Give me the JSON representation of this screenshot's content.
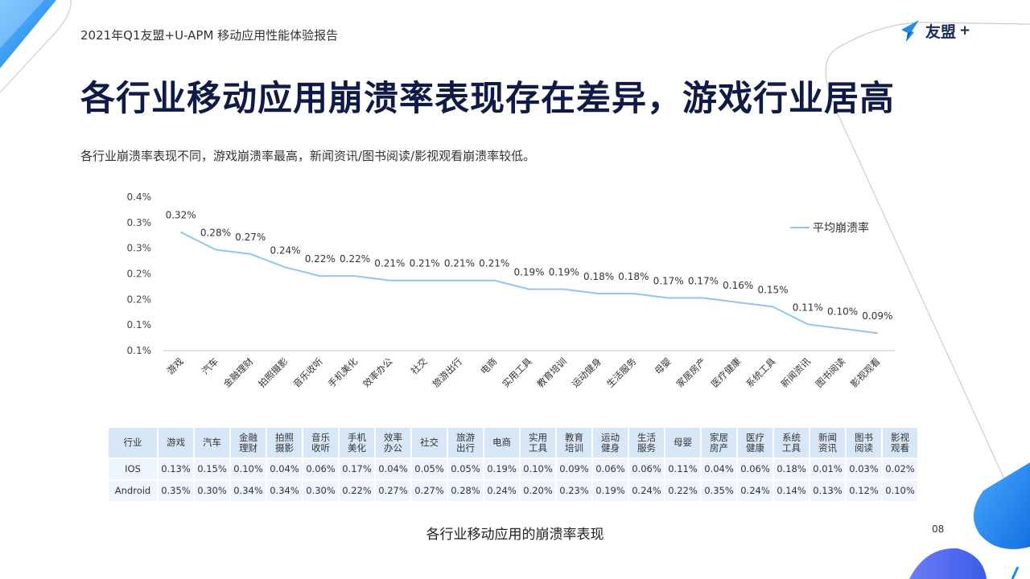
{
  "header": {
    "report_title": "2021年Q1友盟+U-APM 移动应用性能体验报告",
    "logo_text": "友盟"
  },
  "page_title": "各行业移动应用崩溃率表现存在差异，游戏行业居高",
  "subtitle": "各行业崩溃率表现不同，游戏崩溃率最高，新闻资讯/图书阅读/影视观看崩溃率较低。",
  "chart_data": {
    "type": "line",
    "title": "",
    "xlabel": "",
    "ylabel": "",
    "categories": [
      "游戏",
      "汽车",
      "金融理财",
      "拍照摄影",
      "音乐收听",
      "手机美化",
      "效率办公",
      "社交",
      "旅游出行",
      "电商",
      "实用工具",
      "教育培训",
      "运动健身",
      "生活服务",
      "母婴",
      "家居房产",
      "医疗健康",
      "系统工具",
      "新闻资讯",
      "图书阅读",
      "影视观看"
    ],
    "series": [
      {
        "name": "平均崩溃率",
        "values": [
          0.32,
          0.28,
          0.27,
          0.24,
          0.22,
          0.22,
          0.21,
          0.21,
          0.21,
          0.21,
          0.19,
          0.19,
          0.18,
          0.18,
          0.17,
          0.17,
          0.16,
          0.15,
          0.11,
          0.1,
          0.09
        ],
        "labels": [
          "0.32%",
          "0.28%",
          "0.27%",
          "0.24%",
          "0.22%",
          "0.22%",
          "0.21%",
          "0.21%",
          "0.21%",
          "0.21%",
          "0.19%",
          "0.19%",
          "0.18%",
          "0.18%",
          "0.17%",
          "0.17%",
          "0.16%",
          "0.15%",
          "0.11%",
          "0.10%",
          "0.09%"
        ],
        "color": "#92c5f0"
      }
    ],
    "yticks": [
      "0.4%",
      "0.3%",
      "0.3%",
      "0.2%",
      "0.2%",
      "0.1%",
      "0.1%"
    ],
    "ylim": [
      0.05,
      0.4
    ],
    "legend": "top-right",
    "grid": false
  },
  "table": {
    "row_header": "行业",
    "columns": [
      "游戏",
      "汽车",
      "金融\n理财",
      "拍照\n摄影",
      "音乐\n收听",
      "手机\n美化",
      "效率\n办公",
      "社交",
      "旅游\n出行",
      "电商",
      "实用\n工具",
      "教育\n培训",
      "运动\n健身",
      "生活\n服务",
      "母婴",
      "家居\n房产",
      "医疗\n健康",
      "系统\n工具",
      "新闻\n资讯",
      "图书\n阅读",
      "影视\n观看"
    ],
    "rows": [
      {
        "label": "IOS",
        "values": [
          "0.13%",
          "0.15%",
          "0.10%",
          "0.04%",
          "0.06%",
          "0.17%",
          "0.04%",
          "0.05%",
          "0.05%",
          "0.19%",
          "0.10%",
          "0.09%",
          "0.06%",
          "0.06%",
          "0.11%",
          "0.04%",
          "0.06%",
          "0.18%",
          "0.01%",
          "0.03%",
          "0.02%"
        ]
      },
      {
        "label": "Android",
        "values": [
          "0.35%",
          "0.30%",
          "0.34%",
          "0.34%",
          "0.30%",
          "0.22%",
          "0.27%",
          "0.27%",
          "0.28%",
          "0.24%",
          "0.20%",
          "0.23%",
          "0.19%",
          "0.24%",
          "0.22%",
          "0.35%",
          "0.24%",
          "0.14%",
          "0.13%",
          "0.12%",
          "0.10%"
        ]
      }
    ]
  },
  "caption": "各行业移动应用的崩溃率表现",
  "page_number": "08",
  "colors": {
    "title": "#0f1b46",
    "accent_blue": "#1f8cf0",
    "line": "#92c5f0",
    "table_header_bg": "#d8e7f8",
    "table_row_bg": "#eef5fc"
  }
}
